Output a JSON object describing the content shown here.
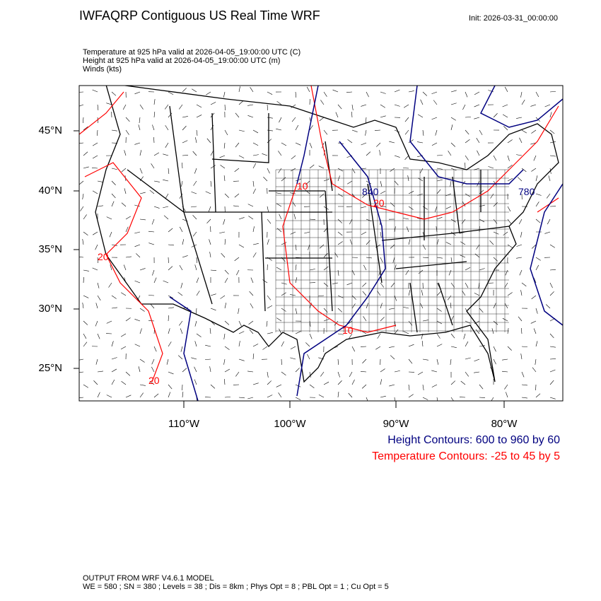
{
  "header": {
    "title": "IWFAQRP Contiguous US Real Time WRF",
    "init": "Init: 2026-03-31_00:00:00",
    "fields": [
      "Temperature at 925 hPa valid at 2026-04-05_19:00:00 UTC   (C)",
      "Height at 925 hPa valid at 2026-04-05_19:00:00 UTC   (m)",
      "Winds   (kts)"
    ]
  },
  "map": {
    "lat_labels": [
      "45°N",
      "40°N",
      "35°N",
      "30°N",
      "25°N"
    ],
    "lon_labels": [
      "110°W",
      "100°W",
      "90°W",
      "80°W"
    ],
    "height_contour_labels": [
      "840",
      "780"
    ],
    "temp_contour_labels": [
      "10",
      "20",
      "20",
      "10",
      "20"
    ],
    "colors": {
      "height": "#000080",
      "temperature": "#ff0000",
      "boundaries": "#000000",
      "winds": "#000000"
    }
  },
  "legend": {
    "height": "Height Contours: 600 to 960 by 60",
    "temperature": "Temperature Contours: -25 to 45 by 5"
  },
  "footer": {
    "model": "OUTPUT FROM WRF V4.6.1 MODEL",
    "config": "WE = 580 ; SN = 380 ; Levels = 38 ; Dis = 8km ; Phys Opt = 8 ; PBL Opt = 1 ; Cu Opt = 5"
  }
}
